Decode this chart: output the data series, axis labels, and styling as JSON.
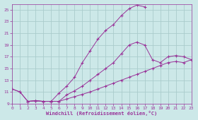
{
  "background_color": "#cce8e8",
  "grid_color": "#aacccc",
  "line_color": "#993399",
  "xlabel": "Windchill (Refroidissement éolien,°C)",
  "xlim": [
    0,
    23
  ],
  "ylim": [
    9,
    26
  ],
  "yticks": [
    9,
    11,
    13,
    15,
    17,
    19,
    21,
    23,
    25
  ],
  "xticks": [
    0,
    1,
    2,
    3,
    4,
    5,
    6,
    7,
    8,
    9,
    10,
    11,
    12,
    13,
    14,
    15,
    16,
    17,
    18,
    19,
    20,
    21,
    22,
    23
  ],
  "curves": [
    {
      "x": [
        0,
        1,
        2,
        3,
        4,
        5,
        6,
        7,
        8,
        9,
        10,
        11,
        12,
        13,
        14,
        15,
        16,
        17
      ],
      "y": [
        11.5,
        11.0,
        9.4,
        9.5,
        9.4,
        9.4,
        10.8,
        12.0,
        13.5,
        16.0,
        18.0,
        20.0,
        21.5,
        22.5,
        24.0,
        25.2,
        25.8,
        25.5
      ]
    },
    {
      "x": [
        0,
        1,
        2,
        3,
        4,
        5,
        6,
        7,
        8,
        9,
        10,
        11,
        12,
        13,
        14,
        15,
        16,
        17,
        18,
        19,
        20,
        21,
        22,
        23
      ],
      "y": [
        11.5,
        11.0,
        9.4,
        9.5,
        9.4,
        9.4,
        9.4,
        10.5,
        11.2,
        12.0,
        13.0,
        14.0,
        15.0,
        16.0,
        17.5,
        19.0,
        19.5,
        19.0,
        16.5,
        16.0,
        17.0,
        17.2,
        17.0,
        16.5
      ]
    },
    {
      "x": [
        2,
        3,
        4,
        5,
        6,
        7,
        8,
        9,
        10,
        11,
        12,
        13,
        14,
        15,
        16,
        17,
        18,
        19,
        20,
        21,
        22,
        23
      ],
      "y": [
        9.4,
        9.5,
        9.4,
        9.4,
        9.4,
        9.8,
        10.2,
        10.6,
        11.0,
        11.5,
        12.0,
        12.5,
        13.0,
        13.5,
        14.0,
        14.5,
        15.0,
        15.5,
        16.0,
        16.2,
        16.0,
        16.5
      ]
    }
  ]
}
